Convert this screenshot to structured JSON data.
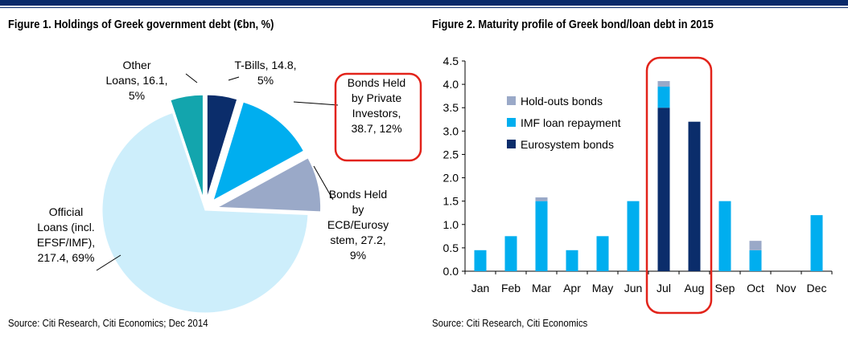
{
  "figure1": {
    "title": "Figure 1. Holdings of Greek government debt (€bn, %)",
    "source": "Source: Citi Research, Citi Economics; Dec 2014"
  },
  "figure2": {
    "title": "Figure 2. Maturity profile of Greek bond/loan debt in 2015",
    "source": "Source: Citi Research, Citi Economics"
  },
  "chart_data": [
    {
      "type": "pie",
      "title": "Figure 1. Holdings of Greek government debt (€bn, %)",
      "slices": [
        {
          "label": "T-Bills",
          "value": 14.8,
          "pct": 5,
          "color": "#0b2d6b",
          "exploded": true,
          "label_lines": [
            "T-Bills, 14.8,",
            "5%"
          ]
        },
        {
          "label": "Bonds Held by Private Investors",
          "value": 38.7,
          "pct": 12,
          "color": "#00aeef",
          "exploded": true,
          "label_lines": [
            "Bonds Held",
            "by Private",
            "Investors,",
            "38.7, 12%"
          ],
          "highlighted": true
        },
        {
          "label": "Bonds Held by ECB/Eurosystem",
          "value": 27.2,
          "pct": 9,
          "color": "#9aa9c8",
          "exploded": true,
          "label_lines": [
            "Bonds Held",
            "by",
            "ECB/Eurosy",
            "stem, 27.2,",
            "9%"
          ]
        },
        {
          "label": "Official Loans (incl. EFSF/IMF)",
          "value": 217.4,
          "pct": 69,
          "color": "#cdeefb",
          "exploded": false,
          "label_lines": [
            "Official",
            "Loans (incl.",
            "EFSF/IMF),",
            "217.4, 69%"
          ]
        },
        {
          "label": "Other Loans",
          "value": 16.1,
          "pct": 5,
          "color": "#13a5ad",
          "exploded": true,
          "label_lines": [
            "Other",
            "Loans, 16.1,",
            "5%"
          ]
        }
      ]
    },
    {
      "type": "bar",
      "stacked": true,
      "title": "Figure 2. Maturity profile of Greek bond/loan debt in 2015",
      "categories": [
        "Jan",
        "Feb",
        "Mar",
        "Apr",
        "May",
        "Jun",
        "Jul",
        "Aug",
        "Sep",
        "Oct",
        "Nov",
        "Dec"
      ],
      "series": [
        {
          "name": "Eurosystem bonds",
          "color": "#0b2d6b",
          "values": [
            0,
            0,
            0,
            0,
            0,
            0,
            3.5,
            3.2,
            0,
            0,
            0,
            0
          ]
        },
        {
          "name": "IMF loan repayment",
          "color": "#00aeef",
          "values": [
            0.45,
            0.75,
            1.5,
            0.45,
            0.75,
            1.5,
            0.45,
            0,
            1.5,
            0.45,
            0,
            1.2
          ]
        },
        {
          "name": "Hold-outs bonds",
          "color": "#9aa9c8",
          "values": [
            0,
            0,
            0.08,
            0,
            0,
            0,
            0.12,
            0,
            0,
            0.2,
            0,
            0
          ]
        }
      ],
      "ylim": [
        0,
        4.5
      ],
      "yticks": [
        "0.0",
        "0.5",
        "1.0",
        "1.5",
        "2.0",
        "2.5",
        "3.0",
        "3.5",
        "4.0",
        "4.5"
      ],
      "highlight_categories": [
        "Jul",
        "Aug"
      ],
      "highlight_color": "#e2231a",
      "grid": false,
      "legend_position": "upper-left"
    }
  ]
}
